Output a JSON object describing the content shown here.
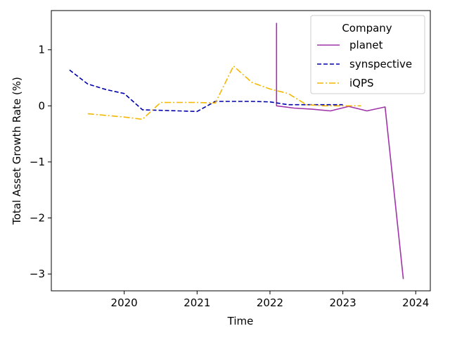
{
  "chart_data": {
    "type": "line",
    "xlabel": "Time",
    "ylabel": "Total Asset Growth Rate (%)",
    "xlim": [
      2019.0,
      2024.2
    ],
    "ylim": [
      -3.3,
      1.7
    ],
    "xticks": [
      {
        "value": 2020,
        "label": "2020"
      },
      {
        "value": 2021,
        "label": "2021"
      },
      {
        "value": 2022,
        "label": "2022"
      },
      {
        "value": 2023,
        "label": "2023"
      },
      {
        "value": 2024,
        "label": "2024"
      }
    ],
    "yticks": [
      {
        "value": 1,
        "label": "1"
      },
      {
        "value": 0,
        "label": "0"
      },
      {
        "value": -1,
        "label": "−1"
      },
      {
        "value": -2,
        "label": "−2"
      },
      {
        "value": -3,
        "label": "−3"
      }
    ],
    "legend": {
      "title": "Company",
      "placement": "top-right"
    },
    "series": [
      {
        "name": "planet",
        "color": "#a033a8",
        "dash": "solid",
        "points": [
          [
            2022.09,
            1.48
          ],
          [
            2022.09,
            0.0
          ],
          [
            2022.33,
            -0.04
          ],
          [
            2022.58,
            -0.06
          ],
          [
            2022.83,
            -0.09
          ],
          [
            2023.08,
            -0.01
          ],
          [
            2023.33,
            -0.09
          ],
          [
            2023.58,
            -0.02
          ],
          [
            2023.83,
            -3.09
          ]
        ]
      },
      {
        "name": "synspective",
        "color": "#0000aa",
        "dash": "dashed",
        "points": [
          [
            2019.25,
            0.64
          ],
          [
            2019.5,
            0.39
          ],
          [
            2019.75,
            0.29
          ],
          [
            2020.0,
            0.22
          ],
          [
            2020.25,
            -0.07
          ],
          [
            2020.5,
            -0.08
          ],
          [
            2020.75,
            -0.09
          ],
          [
            2021.0,
            -0.1
          ],
          [
            2021.25,
            0.08
          ],
          [
            2021.5,
            0.08
          ],
          [
            2021.75,
            0.08
          ],
          [
            2022.0,
            0.07
          ],
          [
            2022.25,
            0.02
          ],
          [
            2022.5,
            0.02
          ],
          [
            2022.75,
            0.02
          ],
          [
            2023.0,
            0.02
          ]
        ]
      },
      {
        "name": "iQPS",
        "color": "#f5b700",
        "dash": "dashdot",
        "points": [
          [
            2019.5,
            -0.14
          ],
          [
            2019.75,
            -0.17
          ],
          [
            2020.0,
            -0.2
          ],
          [
            2020.25,
            -0.24
          ],
          [
            2020.5,
            0.06
          ],
          [
            2020.75,
            0.06
          ],
          [
            2021.0,
            0.06
          ],
          [
            2021.25,
            0.05
          ],
          [
            2021.5,
            0.71
          ],
          [
            2021.75,
            0.42
          ],
          [
            2022.0,
            0.3
          ],
          [
            2022.25,
            0.22
          ],
          [
            2022.5,
            0.02
          ],
          [
            2022.75,
            0.0
          ],
          [
            2023.0,
            0.0
          ],
          [
            2023.25,
            0.0
          ]
        ]
      }
    ]
  }
}
